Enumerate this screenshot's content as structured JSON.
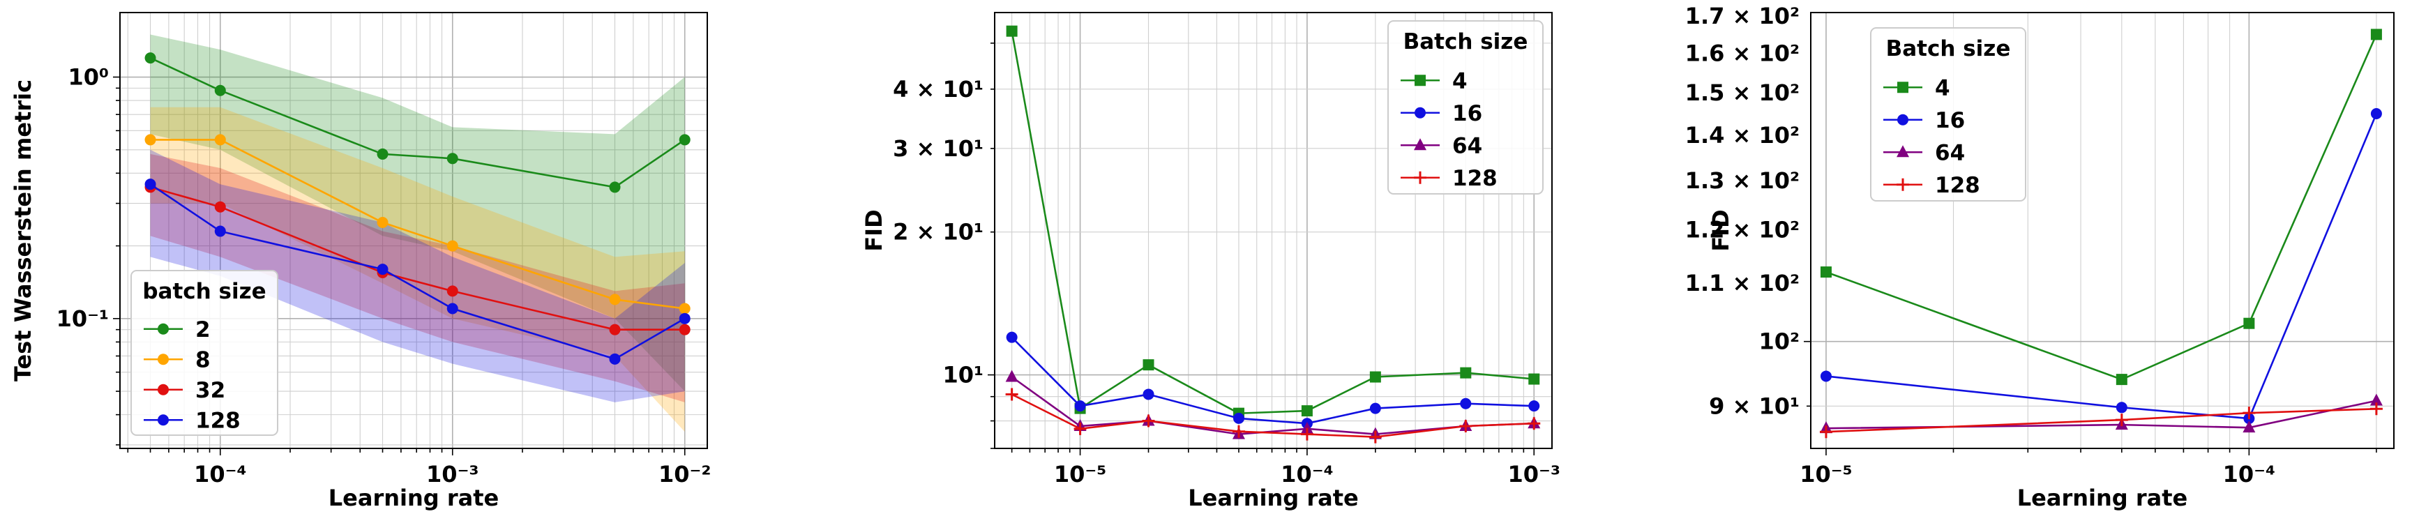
{
  "chart_data": [
    {
      "type": "line",
      "title": "",
      "xlabel": "Learning rate",
      "ylabel": "Test Wasserstein metric",
      "xscale": "log",
      "yscale": "log",
      "xlim": [
        3.7e-05,
        0.0125
      ],
      "ylim": [
        0.029,
        1.85
      ],
      "grid": true,
      "x_ticks": [
        {
          "value": 0.0001,
          "label": "10⁻⁴"
        },
        {
          "value": 0.001,
          "label": "10⁻³"
        },
        {
          "value": 0.01,
          "label": "10⁻²"
        }
      ],
      "y_ticks": [
        {
          "value": 1.0,
          "label": "10⁰"
        },
        {
          "value": 0.1,
          "label": "10⁻¹"
        }
      ],
      "legend": {
        "title": "batch size",
        "position": "lower-left"
      },
      "x": [
        5e-05,
        0.0001,
        0.0005,
        0.001,
        0.005,
        0.01
      ],
      "series": [
        {
          "name": "2",
          "color": "#1a8a1a",
          "marker": "circle",
          "values": [
            1.2,
            0.88,
            0.48,
            0.46,
            0.35,
            0.55
          ],
          "lower": [
            0.58,
            0.5,
            0.22,
            0.19,
            0.1,
            0.05
          ],
          "upper": [
            1.5,
            1.3,
            0.82,
            0.62,
            0.58,
            1.0
          ]
        },
        {
          "name": "8",
          "color": "#ffa500",
          "marker": "circle",
          "values": [
            0.55,
            0.55,
            0.25,
            0.2,
            0.12,
            0.11
          ],
          "lower": [
            0.3,
            0.3,
            0.14,
            0.1,
            0.07,
            0.034
          ],
          "upper": [
            0.75,
            0.75,
            0.42,
            0.32,
            0.18,
            0.19
          ]
        },
        {
          "name": "32",
          "color": "#e01010",
          "marker": "circle",
          "values": [
            0.35,
            0.29,
            0.155,
            0.13,
            0.09,
            0.09
          ],
          "lower": [
            0.22,
            0.18,
            0.1,
            0.08,
            0.055,
            0.045
          ],
          "upper": [
            0.48,
            0.42,
            0.23,
            0.2,
            0.13,
            0.14
          ]
        },
        {
          "name": "128",
          "color": "#1010e0",
          "marker": "circle",
          "values": [
            0.36,
            0.23,
            0.16,
            0.11,
            0.068,
            0.1
          ],
          "lower": [
            0.18,
            0.15,
            0.08,
            0.065,
            0.045,
            0.05
          ],
          "upper": [
            0.5,
            0.36,
            0.25,
            0.18,
            0.1,
            0.17
          ]
        }
      ]
    },
    {
      "type": "line",
      "title": "",
      "xlabel": "Learning rate",
      "ylabel": "FID",
      "xscale": "log",
      "yscale": "log",
      "xlim": [
        4.2e-06,
        0.0012
      ],
      "ylim": [
        7.0,
        58.0
      ],
      "grid": true,
      "x_ticks": [
        {
          "value": 1e-05,
          "label": "10⁻⁵"
        },
        {
          "value": 0.0001,
          "label": "10⁻⁴"
        },
        {
          "value": 0.001,
          "label": "10⁻³"
        }
      ],
      "y_ticks": [
        {
          "value": 10,
          "label": "10¹"
        },
        {
          "value": 20,
          "label": "2 × 10¹"
        },
        {
          "value": 30,
          "label": "3 × 10¹"
        },
        {
          "value": 40,
          "label": "4 × 10¹"
        }
      ],
      "legend": {
        "title": "Batch size",
        "position": "upper-right"
      },
      "x": [
        5e-06,
        1e-05,
        2e-05,
        5e-05,
        0.0001,
        0.0002,
        0.0005,
        0.001
      ],
      "series": [
        {
          "name": "4",
          "color": "#1a8a1a",
          "marker": "square",
          "values": [
            53,
            8.5,
            10.5,
            8.3,
            8.4,
            9.9,
            10.1,
            9.8
          ]
        },
        {
          "name": "16",
          "color": "#1010e0",
          "marker": "circle",
          "values": [
            12.0,
            8.6,
            9.1,
            8.1,
            7.9,
            8.5,
            8.7,
            8.6
          ]
        },
        {
          "name": "64",
          "color": "#800080",
          "marker": "triangle",
          "values": [
            9.9,
            7.8,
            8.0,
            7.5,
            7.7,
            7.5,
            7.8,
            7.9
          ]
        },
        {
          "name": "128",
          "color": "#e01010",
          "marker": "plus",
          "values": [
            9.1,
            7.7,
            8.0,
            7.6,
            7.5,
            7.4,
            7.8,
            7.9
          ]
        }
      ]
    },
    {
      "type": "line",
      "title": "",
      "xlabel": "Learning rate",
      "ylabel": "FID",
      "xscale": "log",
      "yscale": "log",
      "xlim": [
        9.2e-06,
        0.00022
      ],
      "ylim": [
        84.0,
        171.0
      ],
      "grid": true,
      "x_ticks": [
        {
          "value": 1e-05,
          "label": "10⁻⁵"
        },
        {
          "value": 0.0001,
          "label": "10⁻⁴"
        }
      ],
      "y_ticks": [
        {
          "value": 90,
          "label": "9 × 10¹"
        },
        {
          "value": 100,
          "label": "10²"
        },
        {
          "value": 110,
          "label": "1.1 × 10²"
        },
        {
          "value": 120,
          "label": "1.2 × 10²"
        },
        {
          "value": 130,
          "label": "1.3 × 10²"
        },
        {
          "value": 140,
          "label": "1.4 × 10²"
        },
        {
          "value": 150,
          "label": "1.5 × 10²"
        },
        {
          "value": 160,
          "label": "1.6 × 10²"
        },
        {
          "value": 170,
          "label": "1.7 × 10²"
        }
      ],
      "legend": {
        "title": "Batch size",
        "position": "upper-left"
      },
      "x": [
        1e-05,
        5e-05,
        0.0001,
        0.0002
      ],
      "series": [
        {
          "name": "4",
          "color": "#1a8a1a",
          "marker": "square",
          "values": [
            112,
            94,
            103,
            165
          ]
        },
        {
          "name": "16",
          "color": "#1010e0",
          "marker": "circle",
          "values": [
            94.5,
            89.8,
            88.2,
            145
          ]
        },
        {
          "name": "64",
          "color": "#800080",
          "marker": "triangle",
          "values": [
            86.8,
            87.3,
            86.9,
            90.8
          ]
        },
        {
          "name": "128",
          "color": "#e01010",
          "marker": "plus",
          "values": [
            86.3,
            88.0,
            89.0,
            89.6
          ]
        }
      ]
    }
  ]
}
